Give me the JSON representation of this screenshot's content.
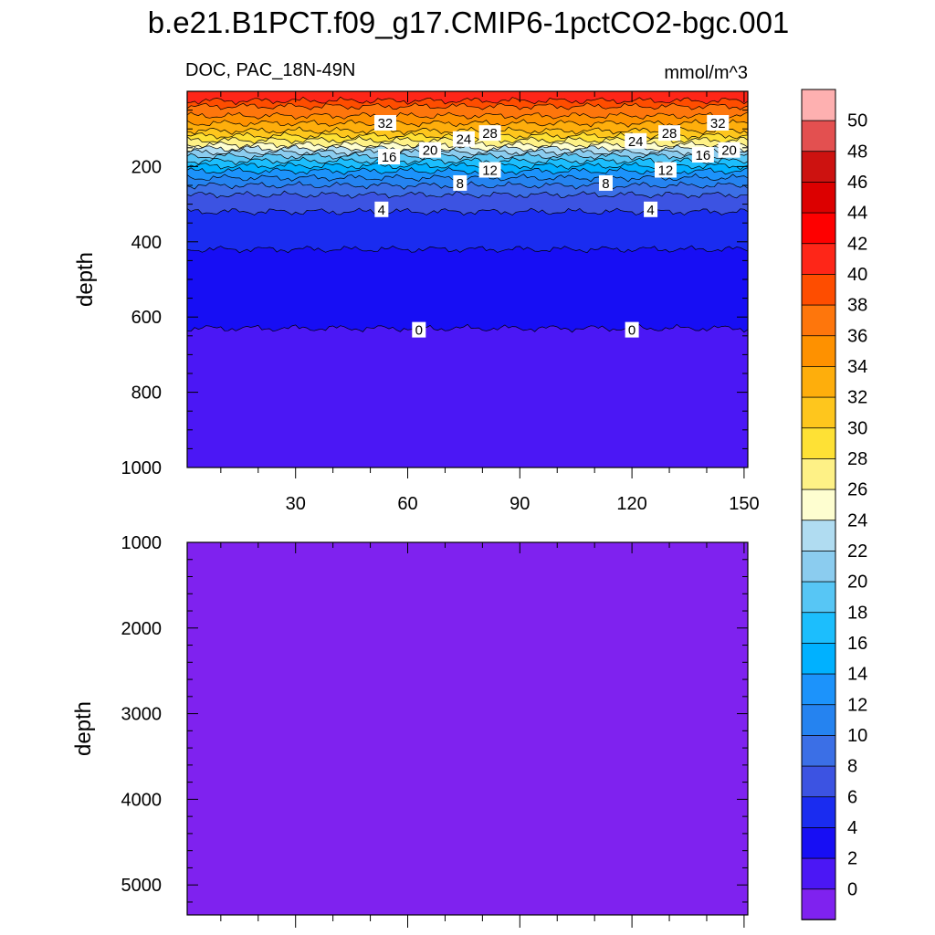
{
  "chart_data": {
    "type": "contour",
    "title": "b.e21.B1PCT.f09_g17.CMIP6-1pctCO2-bgc.001",
    "variable_label": "DOC, PAC_18N-49N",
    "units_label": "mmol/m^3",
    "upper_panel": {
      "xlabel": "",
      "ylabel": "depth",
      "xlim": [
        1,
        151
      ],
      "ylim": [
        1000,
        0
      ],
      "x_ticks": [
        "30",
        "60",
        "90",
        "120",
        "150"
      ],
      "y_ticks": [
        "200",
        "400",
        "600",
        "800",
        "1000"
      ],
      "contour_levels": [
        0,
        2,
        4,
        6,
        8,
        10,
        12,
        14,
        16,
        18,
        20,
        22,
        24,
        26,
        28,
        30,
        32,
        34,
        36,
        38
      ],
      "profile_depth_by_level": [
        {
          "level": 38,
          "depth": 25
        },
        {
          "level": 36,
          "depth": 40
        },
        {
          "level": 34,
          "depth": 65
        },
        {
          "level": 32,
          "depth": 85
        },
        {
          "level": 30,
          "depth": 105
        },
        {
          "level": 28,
          "depth": 118
        },
        {
          "level": 26,
          "depth": 130
        },
        {
          "level": 24,
          "depth": 142
        },
        {
          "level": 22,
          "depth": 152
        },
        {
          "level": 20,
          "depth": 162
        },
        {
          "level": 18,
          "depth": 172
        },
        {
          "level": 16,
          "depth": 185
        },
        {
          "level": 14,
          "depth": 198
        },
        {
          "level": 12,
          "depth": 212
        },
        {
          "level": 10,
          "depth": 230
        },
        {
          "level": 8,
          "depth": 250
        },
        {
          "level": 6,
          "depth": 275
        },
        {
          "level": 4,
          "depth": 320
        },
        {
          "level": 2,
          "depth": 420
        },
        {
          "level": 0,
          "depth": 630
        }
      ],
      "contour_labels": [
        {
          "text": "32",
          "x": 54,
          "depth": 85
        },
        {
          "text": "32",
          "x": 143,
          "depth": 85
        },
        {
          "text": "28",
          "x": 82,
          "depth": 112
        },
        {
          "text": "28",
          "x": 130,
          "depth": 112
        },
        {
          "text": "24",
          "x": 75,
          "depth": 128
        },
        {
          "text": "24",
          "x": 121,
          "depth": 133
        },
        {
          "text": "20",
          "x": 66,
          "depth": 157
        },
        {
          "text": "20",
          "x": 146,
          "depth": 157
        },
        {
          "text": "16",
          "x": 55,
          "depth": 175
        },
        {
          "text": "16",
          "x": 139,
          "depth": 170
        },
        {
          "text": "12",
          "x": 82,
          "depth": 210
        },
        {
          "text": "12",
          "x": 129,
          "depth": 210
        },
        {
          "text": "8",
          "x": 74,
          "depth": 245
        },
        {
          "text": "8",
          "x": 113,
          "depth": 245
        },
        {
          "text": "4",
          "x": 53,
          "depth": 315
        },
        {
          "text": "4",
          "x": 125,
          "depth": 315
        },
        {
          "text": "0",
          "x": 63,
          "depth": 635
        },
        {
          "text": "0",
          "x": 120,
          "depth": 635
        }
      ]
    },
    "lower_panel": {
      "ylabel": "depth",
      "xlim": [
        1,
        151
      ],
      "ylim": [
        5350,
        1000
      ],
      "y_ticks": [
        "1000",
        "2000",
        "3000",
        "4000",
        "5000"
      ],
      "fill_value_range": [
        -1,
        0
      ]
    },
    "colorbar": {
      "labels": [
        "0",
        "2",
        "4",
        "6",
        "8",
        "10",
        "12",
        "14",
        "16",
        "18",
        "20",
        "22",
        "24",
        "26",
        "28",
        "30",
        "32",
        "34",
        "36",
        "38",
        "40",
        "42",
        "44",
        "46",
        "48",
        "50"
      ],
      "colors": [
        "#7f22ef",
        "#4b17f5",
        "#170ef4",
        "#1a2cf0",
        "#3c53e2",
        "#3b6fe6",
        "#2583f0",
        "#1c93fb",
        "#00b1ff",
        "#1cbefd",
        "#57c6f5",
        "#8bccef",
        "#b0dcf1",
        "#fefed0",
        "#fef186",
        "#fee135",
        "#fec61d",
        "#feae0c",
        "#fe9100",
        "#fe760c",
        "#fe4d00",
        "#fe2618",
        "#fe0000",
        "#dc0000",
        "#cd1210",
        "#e35050",
        "#feb0b0"
      ]
    }
  }
}
